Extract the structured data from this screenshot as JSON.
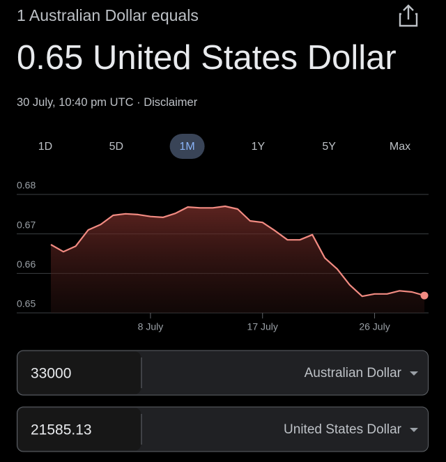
{
  "header": {
    "subtitle": "1 Australian Dollar equals",
    "title": "0.65 United States Dollar",
    "timestamp": "30 July, 10:40 pm UTC ·",
    "disclaimer": "Disclaimer"
  },
  "ranges": [
    {
      "label": "1D"
    },
    {
      "label": "5D"
    },
    {
      "label": "1M",
      "selected": true
    },
    {
      "label": "1Y"
    },
    {
      "label": "5Y"
    },
    {
      "label": "Max"
    }
  ],
  "chart_data": {
    "type": "line",
    "color": "#f28b82",
    "categories": [
      null,
      null,
      null,
      null,
      null,
      null,
      null,
      null,
      "8 July",
      null,
      null,
      null,
      null,
      null,
      null,
      null,
      null,
      "17 July",
      null,
      null,
      null,
      null,
      null,
      null,
      null,
      null,
      "26 July",
      null,
      null,
      null,
      null
    ],
    "values": [
      0.6673,
      0.6655,
      0.6669,
      0.671,
      0.6724,
      0.6747,
      0.6751,
      0.6749,
      0.6744,
      0.6742,
      0.6752,
      0.6768,
      0.6766,
      0.6766,
      0.677,
      0.6763,
      0.6733,
      0.6729,
      0.6708,
      0.6685,
      0.6685,
      0.6698,
      0.6639,
      0.6611,
      0.6571,
      0.6542,
      0.6548,
      0.6548,
      0.6556,
      0.6553,
      0.6544
    ],
    "ylim": [
      0.65,
      0.68
    ],
    "yticks": [
      0.65,
      0.66,
      0.67,
      0.68
    ],
    "grid": true
  },
  "converter": [
    {
      "amount": "33000",
      "currency": "Australian Dollar"
    },
    {
      "amount": "21585.13",
      "currency": "United States Dollar"
    }
  ]
}
